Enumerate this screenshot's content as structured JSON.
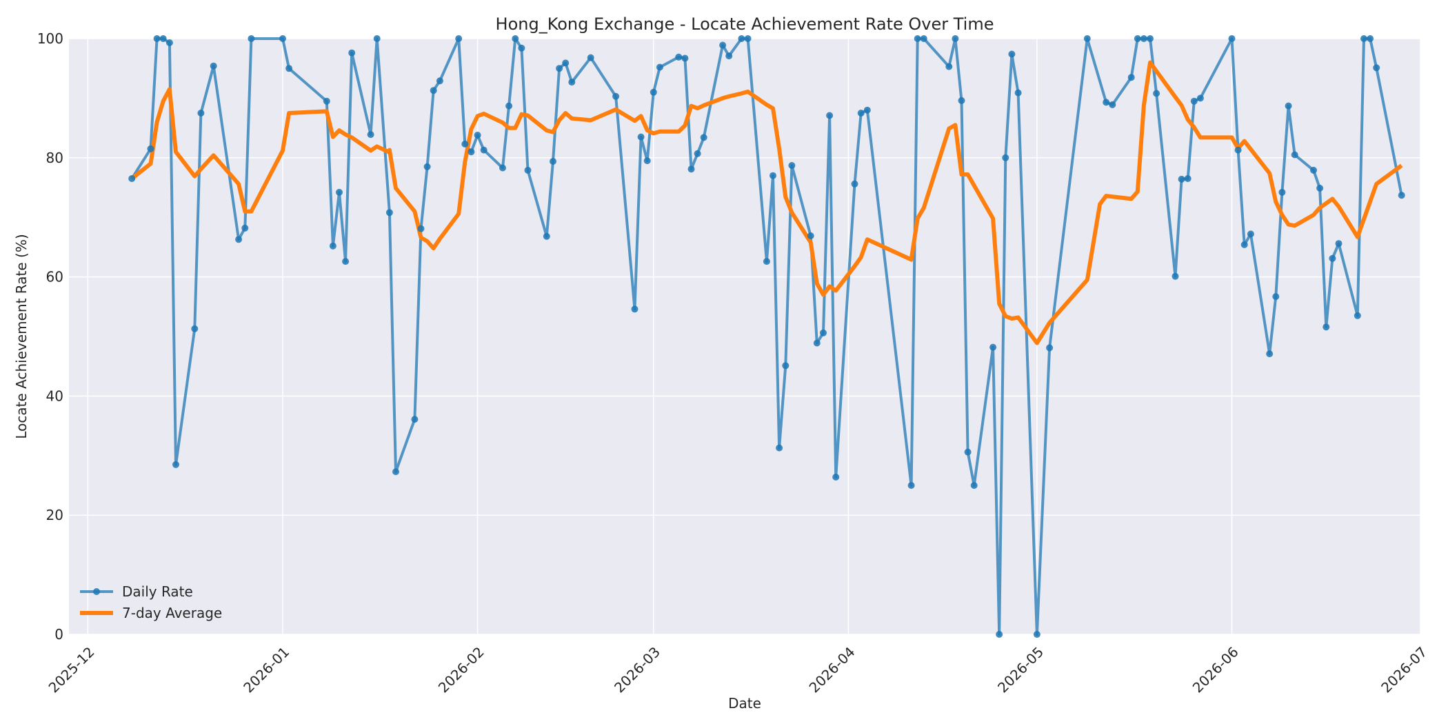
{
  "chart_data": {
    "type": "line",
    "title": "Hong_Kong Exchange - Locate Achievement Rate Over Time",
    "xlabel": "Date",
    "ylabel": "Locate Achievement Rate (%)",
    "xlim": [
      "2025-11-28",
      "2026-07-01"
    ],
    "ylim": [
      0,
      100
    ],
    "x_ticks": [
      "2025-12",
      "2026-01",
      "2026-02",
      "2026-03",
      "2026-04",
      "2026-05",
      "2026-06",
      "2026-07"
    ],
    "x_tick_dates": [
      "2025-12-01",
      "2026-01-01",
      "2026-02-01",
      "2026-03-01",
      "2026-04-01",
      "2026-05-01",
      "2026-06-01",
      "2026-07-01"
    ],
    "y_ticks": [
      0,
      20,
      40,
      60,
      80,
      100
    ],
    "grid": true,
    "legend_position": "lower-left",
    "colors": {
      "daily": "#1f77b4",
      "avg": "#ff7f0e",
      "plot_bg": "#eaeaf2",
      "grid": "#ffffff"
    },
    "series": [
      {
        "name": "Daily Rate",
        "marker": "circle",
        "points": [
          [
            "2025-12-08",
            76.5
          ],
          [
            "2025-12-11",
            81.5
          ],
          [
            "2025-12-12",
            100
          ],
          [
            "2025-12-13",
            100
          ],
          [
            "2025-12-14",
            99.3
          ],
          [
            "2025-12-15",
            28.5
          ],
          [
            "2025-12-18",
            51.3
          ],
          [
            "2025-12-19",
            87.5
          ],
          [
            "2025-12-21",
            95.4
          ],
          [
            "2025-12-25",
            66.3
          ],
          [
            "2025-12-26",
            68.2
          ],
          [
            "2025-12-27",
            100
          ],
          [
            "2026-01-01",
            100
          ],
          [
            "2026-01-02",
            95.0
          ],
          [
            "2026-01-08",
            89.5
          ],
          [
            "2026-01-09",
            65.2
          ],
          [
            "2026-01-10",
            74.2
          ],
          [
            "2026-01-11",
            62.6
          ],
          [
            "2026-01-12",
            97.6
          ],
          [
            "2026-01-15",
            83.9
          ],
          [
            "2026-01-16",
            100
          ],
          [
            "2026-01-18",
            70.8
          ],
          [
            "2026-01-19",
            27.3
          ],
          [
            "2026-01-22",
            36.1
          ],
          [
            "2026-01-23",
            68.1
          ],
          [
            "2026-01-24",
            78.5
          ],
          [
            "2026-01-25",
            91.3
          ],
          [
            "2026-01-26",
            92.9
          ],
          [
            "2026-01-29",
            100
          ],
          [
            "2026-01-30",
            82.3
          ],
          [
            "2026-01-31",
            81.0
          ],
          [
            "2026-02-01",
            83.8
          ],
          [
            "2026-02-02",
            81.3
          ],
          [
            "2026-02-05",
            78.3
          ],
          [
            "2026-02-06",
            88.7
          ],
          [
            "2026-02-07",
            100
          ],
          [
            "2026-02-08",
            98.4
          ],
          [
            "2026-02-09",
            77.9
          ],
          [
            "2026-02-12",
            66.8
          ],
          [
            "2026-02-13",
            79.4
          ],
          [
            "2026-02-14",
            95.0
          ],
          [
            "2026-02-15",
            95.9
          ],
          [
            "2026-02-16",
            92.7
          ],
          [
            "2026-02-19",
            96.8
          ],
          [
            "2026-02-23",
            90.3
          ],
          [
            "2026-02-26",
            54.6
          ],
          [
            "2026-02-27",
            83.5
          ],
          [
            "2026-02-28",
            79.5
          ],
          [
            "2026-03-01",
            91.0
          ],
          [
            "2026-03-02",
            95.2
          ],
          [
            "2026-03-05",
            96.9
          ],
          [
            "2026-03-06",
            96.7
          ],
          [
            "2026-03-07",
            78.1
          ],
          [
            "2026-03-08",
            80.7
          ],
          [
            "2026-03-09",
            83.4
          ],
          [
            "2026-03-12",
            98.9
          ],
          [
            "2026-03-13",
            97.1
          ],
          [
            "2026-03-15",
            100
          ],
          [
            "2026-03-16",
            100
          ],
          [
            "2026-03-19",
            62.6
          ],
          [
            "2026-03-20",
            77.0
          ],
          [
            "2026-03-21",
            31.3
          ],
          [
            "2026-03-22",
            45.1
          ],
          [
            "2026-03-23",
            78.7
          ],
          [
            "2026-03-26",
            66.9
          ],
          [
            "2026-03-27",
            48.9
          ],
          [
            "2026-03-28",
            50.6
          ],
          [
            "2026-03-29",
            87.1
          ],
          [
            "2026-03-30",
            26.4
          ],
          [
            "2026-04-02",
            75.6
          ],
          [
            "2026-04-03",
            87.5
          ],
          [
            "2026-04-04",
            88.0
          ],
          [
            "2026-04-11",
            25.0
          ],
          [
            "2026-04-12",
            100
          ],
          [
            "2026-04-13",
            100
          ],
          [
            "2026-04-17",
            95.3
          ],
          [
            "2026-04-18",
            100
          ],
          [
            "2026-04-19",
            89.6
          ],
          [
            "2026-04-20",
            30.6
          ],
          [
            "2026-04-21",
            25.0
          ],
          [
            "2026-04-24",
            48.2
          ],
          [
            "2026-04-25",
            0
          ],
          [
            "2026-04-26",
            80.0
          ],
          [
            "2026-04-27",
            97.4
          ],
          [
            "2026-04-28",
            90.9
          ],
          [
            "2026-05-01",
            0
          ],
          [
            "2026-05-03",
            48.1
          ],
          [
            "2026-05-09",
            100
          ],
          [
            "2026-05-12",
            89.3
          ],
          [
            "2026-05-13",
            88.9
          ],
          [
            "2026-05-16",
            93.5
          ],
          [
            "2026-05-17",
            100
          ],
          [
            "2026-05-18",
            100
          ],
          [
            "2026-05-19",
            100
          ],
          [
            "2026-05-20",
            90.8
          ],
          [
            "2026-05-23",
            60.1
          ],
          [
            "2026-05-24",
            76.4
          ],
          [
            "2026-05-25",
            76.5
          ],
          [
            "2026-05-26",
            89.5
          ],
          [
            "2026-05-27",
            90.0
          ],
          [
            "2026-06-01",
            100
          ],
          [
            "2026-06-02",
            81.3
          ],
          [
            "2026-06-03",
            65.4
          ],
          [
            "2026-06-04",
            67.2
          ],
          [
            "2026-06-07",
            47.1
          ],
          [
            "2026-06-08",
            56.7
          ],
          [
            "2026-06-09",
            74.2
          ],
          [
            "2026-06-10",
            88.7
          ],
          [
            "2026-06-11",
            80.5
          ],
          [
            "2026-06-14",
            77.9
          ],
          [
            "2026-06-15",
            74.9
          ],
          [
            "2026-06-16",
            51.6
          ],
          [
            "2026-06-17",
            63.1
          ],
          [
            "2026-06-18",
            65.6
          ],
          [
            "2026-06-21",
            53.5
          ],
          [
            "2026-06-22",
            100
          ],
          [
            "2026-06-23",
            100
          ],
          [
            "2026-06-24",
            95.1
          ],
          [
            "2026-06-28",
            73.7
          ]
        ]
      },
      {
        "name": "7-day Average",
        "marker": "none",
        "points": [
          [
            "2025-12-08",
            76.5
          ],
          [
            "2025-12-11",
            79.0
          ],
          [
            "2025-12-12",
            86.0
          ],
          [
            "2025-12-13",
            89.5
          ],
          [
            "2025-12-14",
            91.5
          ],
          [
            "2025-12-15",
            81.0
          ],
          [
            "2025-12-18",
            76.9
          ],
          [
            "2025-12-19",
            78.1
          ],
          [
            "2025-12-21",
            80.4
          ],
          [
            "2025-12-25",
            75.6
          ],
          [
            "2025-12-26",
            71.0
          ],
          [
            "2025-12-27",
            71.0
          ],
          [
            "2026-01-01",
            81.2
          ],
          [
            "2026-01-02",
            87.5
          ],
          [
            "2026-01-08",
            87.8
          ],
          [
            "2026-01-09",
            83.5
          ],
          [
            "2026-01-10",
            84.6
          ],
          [
            "2026-01-11",
            83.9
          ],
          [
            "2026-01-12",
            83.4
          ],
          [
            "2026-01-15",
            81.2
          ],
          [
            "2026-01-16",
            81.9
          ],
          [
            "2026-01-18",
            80.9
          ],
          [
            "2026-01-18",
            81.3
          ],
          [
            "2026-01-19",
            74.9
          ],
          [
            "2026-01-22",
            71.0
          ],
          [
            "2026-01-23",
            66.6
          ],
          [
            "2026-01-24",
            66.0
          ],
          [
            "2026-01-25",
            64.8
          ],
          [
            "2026-01-26",
            66.4
          ],
          [
            "2026-01-29",
            70.6
          ],
          [
            "2026-01-30",
            79.3
          ],
          [
            "2026-01-31",
            84.8
          ],
          [
            "2026-02-01",
            87.0
          ],
          [
            "2026-02-02",
            87.4
          ],
          [
            "2026-02-05",
            85.9
          ],
          [
            "2026-02-06",
            85.0
          ],
          [
            "2026-02-07",
            85.0
          ],
          [
            "2026-02-08",
            87.3
          ],
          [
            "2026-02-09",
            87.1
          ],
          [
            "2026-02-12",
            84.6
          ],
          [
            "2026-02-13",
            84.3
          ],
          [
            "2026-02-14",
            86.3
          ],
          [
            "2026-02-15",
            87.5
          ],
          [
            "2026-02-16",
            86.6
          ],
          [
            "2026-02-19",
            86.3
          ],
          [
            "2026-02-23",
            88.1
          ],
          [
            "2026-02-26",
            86.2
          ],
          [
            "2026-02-27",
            87.0
          ],
          [
            "2026-02-28",
            84.6
          ],
          [
            "2026-03-01",
            84.1
          ],
          [
            "2026-03-02",
            84.4
          ],
          [
            "2026-03-05",
            84.4
          ],
          [
            "2026-03-06",
            85.4
          ],
          [
            "2026-03-07",
            88.7
          ],
          [
            "2026-03-08",
            88.3
          ],
          [
            "2026-03-09",
            88.8
          ],
          [
            "2026-03-12",
            90.0
          ],
          [
            "2026-03-13",
            90.3
          ],
          [
            "2026-03-15",
            90.8
          ],
          [
            "2026-03-16",
            91.1
          ],
          [
            "2026-03-19",
            88.9
          ],
          [
            "2026-03-20",
            88.3
          ],
          [
            "2026-03-21",
            81.5
          ],
          [
            "2026-03-22",
            73.4
          ],
          [
            "2026-03-23",
            70.8
          ],
          [
            "2026-03-26",
            65.8
          ],
          [
            "2026-03-27",
            58.9
          ],
          [
            "2026-03-28",
            57.0
          ],
          [
            "2026-03-29",
            58.4
          ],
          [
            "2026-03-30",
            57.7
          ],
          [
            "2026-04-02",
            61.8
          ],
          [
            "2026-04-03",
            63.3
          ],
          [
            "2026-04-04",
            66.3
          ],
          [
            "2026-04-11",
            62.9
          ],
          [
            "2026-04-12",
            69.8
          ],
          [
            "2026-04-13",
            71.6
          ],
          [
            "2026-04-17",
            84.9
          ],
          [
            "2026-04-18",
            85.5
          ],
          [
            "2026-04-19",
            77.2
          ],
          [
            "2026-04-20",
            77.2
          ],
          [
            "2026-04-24",
            69.8
          ],
          [
            "2026-04-25",
            55.5
          ],
          [
            "2026-04-26",
            53.4
          ],
          [
            "2026-04-27",
            53.0
          ],
          [
            "2026-04-28",
            53.2
          ],
          [
            "2026-05-01",
            48.9
          ],
          [
            "2026-05-03",
            52.3
          ],
          [
            "2026-05-09",
            59.5
          ],
          [
            "2026-05-11",
            72.2
          ],
          [
            "2026-05-12",
            73.6
          ],
          [
            "2026-05-16",
            73.1
          ],
          [
            "2026-05-17",
            74.3
          ],
          [
            "2026-05-18",
            88.8
          ],
          [
            "2026-05-19",
            96.0
          ],
          [
            "2026-05-23",
            90.2
          ],
          [
            "2026-05-24",
            88.8
          ],
          [
            "2026-05-25",
            86.4
          ],
          [
            "2026-05-26",
            85.1
          ],
          [
            "2026-05-27",
            83.4
          ],
          [
            "2026-06-01",
            83.4
          ],
          [
            "2026-06-02",
            81.6
          ],
          [
            "2026-06-03",
            82.8
          ],
          [
            "2026-06-07",
            77.4
          ],
          [
            "2026-06-08",
            72.6
          ],
          [
            "2026-06-09",
            70.4
          ],
          [
            "2026-06-10",
            68.8
          ],
          [
            "2026-06-11",
            68.6
          ],
          [
            "2026-06-14",
            70.4
          ],
          [
            "2026-06-15",
            71.6
          ],
          [
            "2026-06-17",
            73.1
          ],
          [
            "2026-06-18",
            71.8
          ],
          [
            "2026-06-21",
            66.7
          ],
          [
            "2026-06-24",
            75.6
          ],
          [
            "2026-06-28",
            78.7
          ]
        ]
      }
    ]
  }
}
